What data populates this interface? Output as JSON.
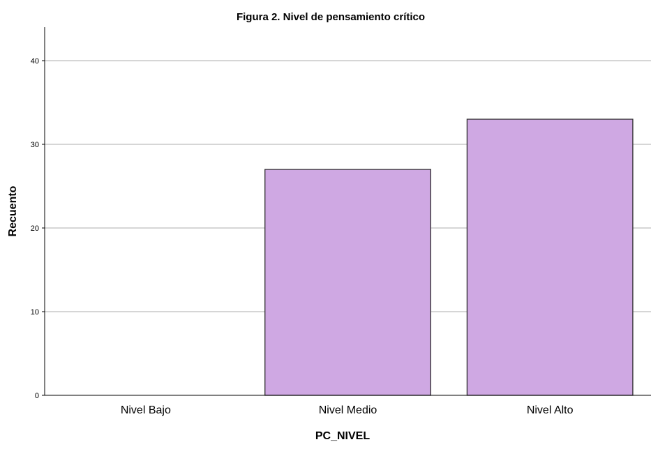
{
  "chart_data": {
    "type": "bar",
    "title": "Figura 2. Nivel de pensamiento crítico",
    "xlabel": "PC_NIVEL",
    "ylabel": "Recuento",
    "categories": [
      "Nivel Bajo",
      "Nivel Medio",
      "Nivel Alto"
    ],
    "values": [
      0,
      27,
      33
    ],
    "ylim": [
      0,
      44
    ],
    "yticks": [
      0,
      10,
      20,
      30,
      40
    ],
    "grid": true,
    "legend": "none",
    "colors": {
      "bar_fill": "#cfa8e3",
      "bar_stroke": "#2b2b2b",
      "grid": "#bdbdbd",
      "axis": "#000000"
    }
  }
}
